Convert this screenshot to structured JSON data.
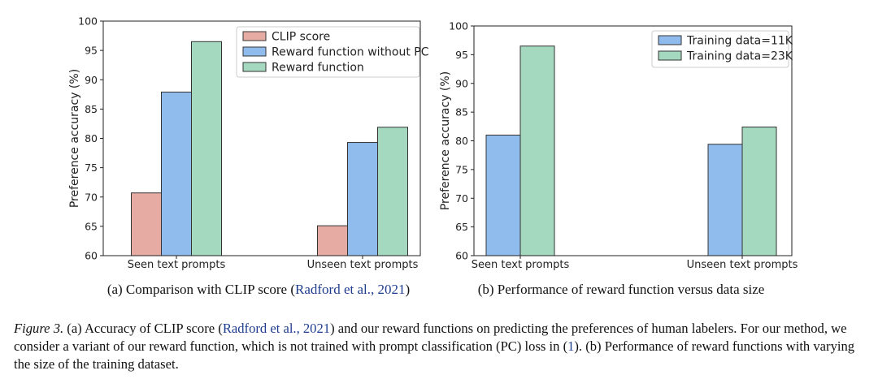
{
  "chart_data": [
    {
      "type": "bar",
      "ylabel": "Preference accuracy (%)",
      "xlabel": "",
      "ylim": [
        60,
        100
      ],
      "yticks": [
        60,
        65,
        70,
        75,
        80,
        85,
        90,
        95,
        100
      ],
      "categories": [
        "Seen text prompts",
        "Unseen text prompts"
      ],
      "series": [
        {
          "name": "CLIP score",
          "values": [
            70.7,
            65.1
          ],
          "color": "#e6aca4"
        },
        {
          "name": "Reward function without PC",
          "values": [
            87.9,
            79.3
          ],
          "color": "#8fbcec"
        },
        {
          "name": "Reward function",
          "values": [
            96.5,
            81.9
          ],
          "color": "#a4d8bf"
        }
      ],
      "legend_position": "top-right",
      "caption_prefix": "(a)  Comparison with CLIP score (",
      "caption_cite": "Radford et al., 2021",
      "caption_suffix": ")"
    },
    {
      "type": "bar",
      "ylabel": "Preference accuracy (%)",
      "xlabel": "",
      "ylim": [
        60,
        100
      ],
      "yticks": [
        60,
        65,
        70,
        75,
        80,
        85,
        90,
        95,
        100
      ],
      "categories": [
        "Seen text prompts",
        "Unseen text prompts"
      ],
      "series": [
        {
          "name": "Training data=11K",
          "values": [
            81.0,
            79.4
          ],
          "color": "#8fbcec"
        },
        {
          "name": "Training data=23K",
          "values": [
            96.5,
            82.4
          ],
          "color": "#a4d8bf"
        }
      ],
      "legend_position": "top-right",
      "caption_prefix": "(b)  Performance of reward function versus data size",
      "caption_cite": "",
      "caption_suffix": ""
    }
  ],
  "caption": {
    "label": "Figure 3.",
    "part1": " (a) Accuracy of CLIP score (",
    "cite1": "Radford et al., 2021",
    "part2": ") and our reward functions on predicting the preferences of human labelers. For our method, we consider a variant of our reward function, which is not trained with prompt classification (PC) loss in (",
    "cite2": "1",
    "part3": "). (b) Performance of reward functions with varying the size of the training dataset."
  }
}
